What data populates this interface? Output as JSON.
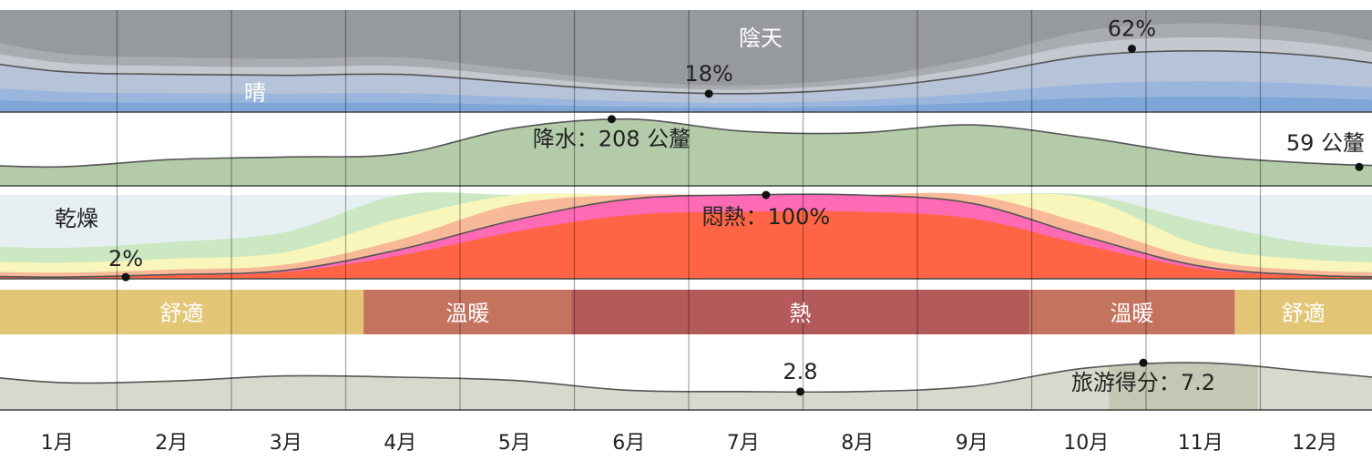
{
  "chart_data": {
    "type": "area",
    "months": [
      "1月",
      "2月",
      "3月",
      "4月",
      "5月",
      "6月",
      "7月",
      "8月",
      "9月",
      "10月",
      "11月",
      "12月"
    ],
    "cloud": {
      "label_overcast": "陰天",
      "label_clear": "晴",
      "unit": "%",
      "clear_fraction": [
        0.4,
        0.37,
        0.36,
        0.37,
        0.29,
        0.21,
        0.18,
        0.23,
        0.36,
        0.55,
        0.6,
        0.55
      ],
      "annotations": [
        {
          "text": "18%",
          "value": 18,
          "month_pos": 6.7
        },
        {
          "text": "62%",
          "value": 62,
          "month_pos": 10.4
        }
      ],
      "colors": [
        "#7ea6d9",
        "#9bb6dc",
        "#b6c3d9",
        "#c4c8cf",
        "#a8abb0",
        "#96999e"
      ]
    },
    "precipitation": {
      "values": [
        59,
        82,
        90,
        100,
        180,
        208,
        170,
        165,
        190,
        150,
        96,
        70
      ],
      "max": 230,
      "color": "#b3cba9",
      "annotations": [
        {
          "text": "降水：208 公釐",
          "value": 208,
          "month_pos": 5.85
        },
        {
          "text": "59 公釐",
          "value": 59,
          "month_pos": 12.95
        }
      ]
    },
    "humidity": {
      "label_dry": "乾燥",
      "unit": "%",
      "band_colors": [
        "#e6f0f3",
        "#cbe8c3",
        "#f8f6ba",
        "#f8b999",
        "#ff6ab5",
        "#ff6544"
      ],
      "muggy_pct": [
        2,
        5,
        10,
        35,
        70,
        95,
        100,
        100,
        90,
        50,
        15,
        4
      ],
      "annotations": [
        {
          "text": "2%",
          "value": 2,
          "month_pos": 1.6
        },
        {
          "text": "悶熱：100%",
          "value": 100,
          "month_pos": 7.2
        }
      ]
    },
    "temperature_bands": [
      {
        "label": "舒適",
        "start": 0.5,
        "end": 3.68,
        "color": "#e3c675"
      },
      {
        "label": "溫暖",
        "start": 3.68,
        "end": 5.5,
        "color": "#c4735f"
      },
      {
        "label": "熱",
        "start": 5.5,
        "end": 9.5,
        "color": "#b45a5a"
      },
      {
        "label": "溫暖",
        "start": 9.5,
        "end": 11.3,
        "color": "#c4735f"
      },
      {
        "label": "舒適",
        "start": 11.3,
        "end": 13.0,
        "color": "#e3c675"
      }
    ],
    "tourism_score": {
      "values": [
        4.2,
        4.4,
        5.2,
        5.0,
        4.5,
        3.0,
        2.8,
        2.8,
        3.6,
        6.4,
        7.2,
        5.8
      ],
      "max": 10,
      "color": "#d8d8cd",
      "highlight_color": "#c3c7b4",
      "annotations": [
        {
          "text": "2.8",
          "value": 2.8,
          "month_pos": 7.5
        },
        {
          "text": "旅游得分：7.2",
          "value": 7.2,
          "month_pos": 10.5
        }
      ]
    }
  }
}
